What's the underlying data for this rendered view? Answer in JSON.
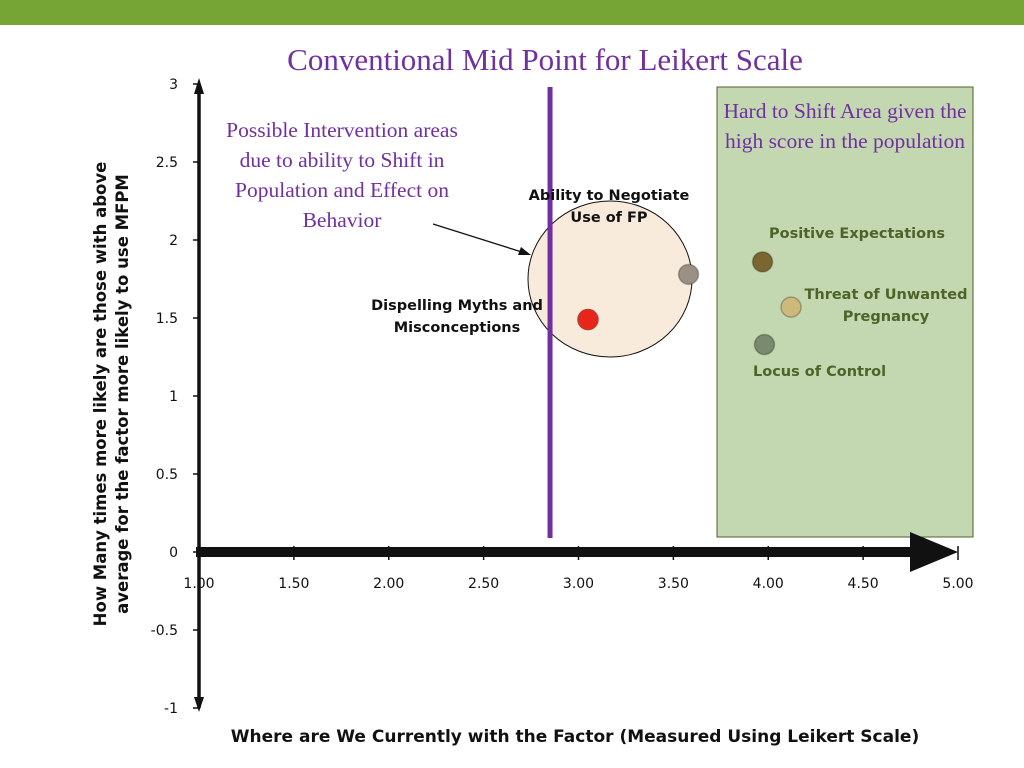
{
  "chart_data": {
    "type": "scatter",
    "title": "Conventional Mid Point for Leikert Scale",
    "xlabel": "Where are  We Currently with the Factor (Measured Using Leikert Scale)",
    "ylabel": "How Many times more likely are those with above average for the factor more likely to use MFPM",
    "xlim": [
      1.0,
      5.0
    ],
    "ylim": [
      -1,
      3
    ],
    "x_ticks": [
      "1.00",
      "1.50",
      "2.00",
      "2.50",
      "3.00",
      "3.50",
      "4.00",
      "4.50",
      "5.00"
    ],
    "y_ticks": [
      "3",
      "2.5",
      "2",
      "1.5",
      "1",
      "0.5",
      "0",
      "-0.5",
      "-1"
    ],
    "grid": false,
    "midpoint_line_x": 2.85,
    "points": [
      {
        "label": "Dispelling Myths and Misconceptions",
        "x": 3.05,
        "y": 1.49,
        "color": "#e8251b"
      },
      {
        "label": "Ability to Negotiate Use of FP",
        "x": 3.58,
        "y": 1.78,
        "color": "#9a9083"
      },
      {
        "label": "Positive Expectations",
        "x": 3.97,
        "y": 1.86,
        "color": "#7b6630"
      },
      {
        "label": "Threat of Unwanted Pregnancy",
        "x": 4.12,
        "y": 1.57,
        "color": "#cdb97a"
      },
      {
        "label": "Locus of Control",
        "x": 3.98,
        "y": 1.33,
        "color": "#7a8a6e"
      }
    ],
    "annotations": {
      "intervention": "Possible Intervention areas due to ability to Shift in Population and Effect on Behavior",
      "hard_to_shift": "Hard to Shift Area given the high score in the population"
    }
  },
  "colors": {
    "top_bar": "#76a535",
    "title": "#7030a0",
    "midpoint_line": "#7030a0",
    "hard_area_fill": "#c3d7b1",
    "hard_area_border": "#4f6228",
    "intervention_circle": "#f9ebdc",
    "label_green": "#4f6228"
  }
}
